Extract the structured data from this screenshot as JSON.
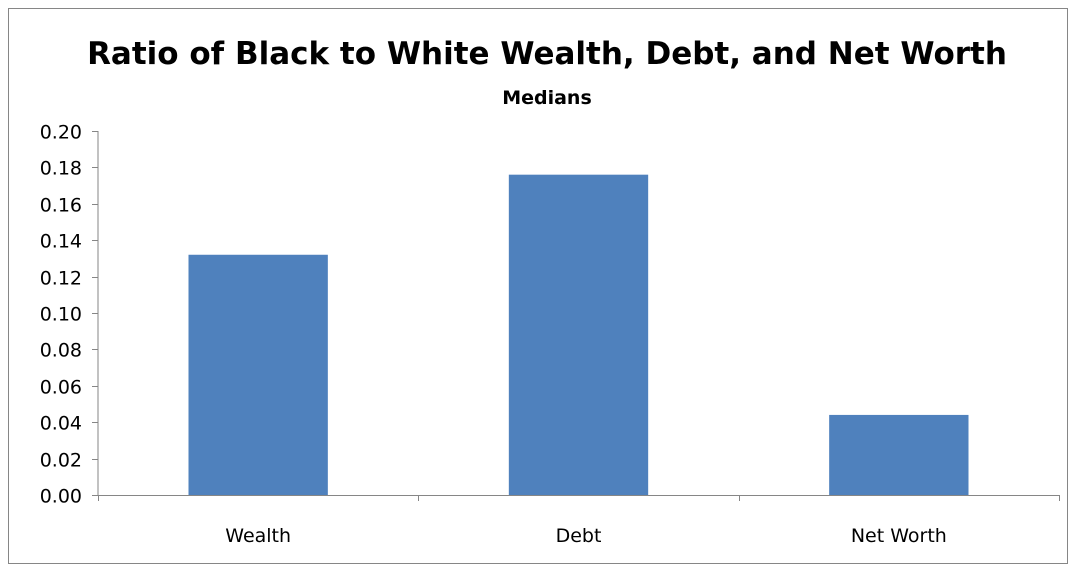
{
  "chart_data": {
    "type": "bar",
    "title": "Ratio of Black to White Wealth, Debt, and Net Worth",
    "subtitle": "Medians",
    "categories": [
      "Wealth",
      "Debt",
      "Net Worth"
    ],
    "values": [
      0.132,
      0.176,
      0.044
    ],
    "ylim": [
      0,
      0.2
    ],
    "yticks": [
      "0.00",
      "0.02",
      "0.04",
      "0.06",
      "0.08",
      "0.10",
      "0.12",
      "0.14",
      "0.16",
      "0.18",
      "0.20"
    ],
    "ytick_values": [
      0,
      0.02,
      0.04,
      0.06,
      0.08,
      0.1,
      0.12,
      0.14,
      0.16,
      0.18,
      0.2
    ],
    "xlabel": "",
    "ylabel": "",
    "grid": false,
    "legend": "none",
    "bar_color": "#4F81BD",
    "axis_color": "#868686"
  }
}
